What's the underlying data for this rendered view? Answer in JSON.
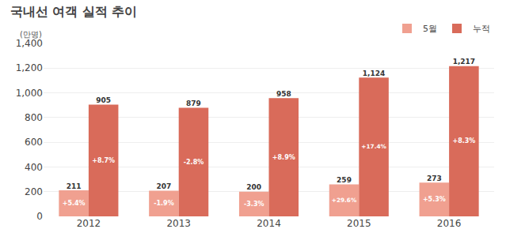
{
  "chart_data": {
    "type": "bar",
    "title": "국내선 여객 실적 추이",
    "ylabel": "(만명)",
    "categories": [
      "2012",
      "2013",
      "2014",
      "2015",
      "2016"
    ],
    "series": [
      {
        "name": "5월",
        "color": "#f0a090",
        "values": [
          211,
          207,
          200,
          259,
          273
        ],
        "change_labels": [
          "+5.4%",
          "-1.9%",
          "-3.3%",
          "+29.6%",
          "+5.3%"
        ]
      },
      {
        "name": "누적",
        "color": "#d96b5a",
        "values": [
          905,
          879,
          958,
          1124,
          1217
        ],
        "value_labels": [
          "905",
          "879",
          "958",
          "1,124",
          "1,217"
        ],
        "change_labels": [
          "+8.7%",
          "-2.8%",
          "+8.9%",
          "+17.4%",
          "+8.3%"
        ]
      }
    ],
    "ylim": [
      0,
      1400
    ],
    "yticks": [
      0,
      200,
      400,
      600,
      800,
      {
        "value": 1000,
        "label": "1,000"
      },
      {
        "value": 1200,
        "label": "1,200"
      },
      {
        "value": 1400,
        "label": "1,400"
      }
    ],
    "grid": true,
    "legend": "upper right",
    "data_labels": true
  }
}
